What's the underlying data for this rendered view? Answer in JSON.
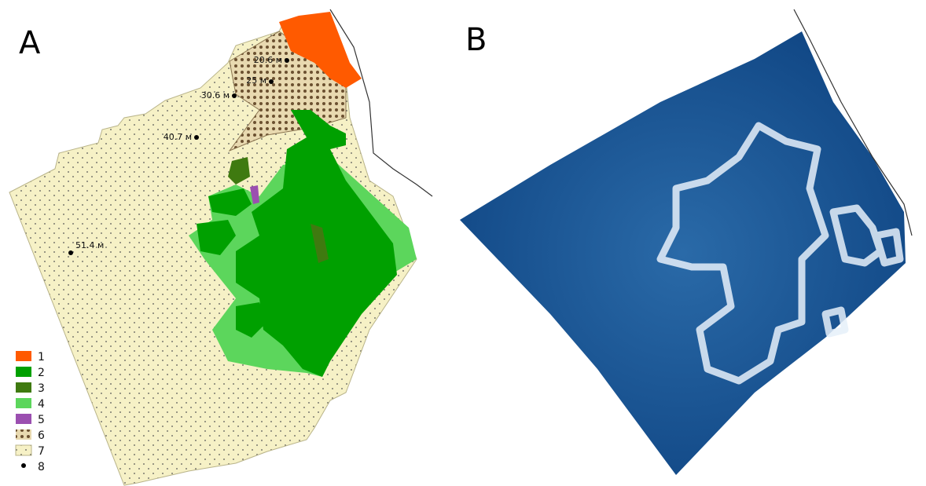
{
  "panels": [
    {
      "label": "A"
    },
    {
      "label": "B"
    }
  ],
  "depth_labels": [
    "20.6 м",
    "25 м",
    "30.6 м",
    "40.7 м",
    "51.4 м"
  ],
  "legend": [
    "1",
    "2",
    "3",
    "4",
    "5",
    "6",
    "7",
    "8"
  ]
}
